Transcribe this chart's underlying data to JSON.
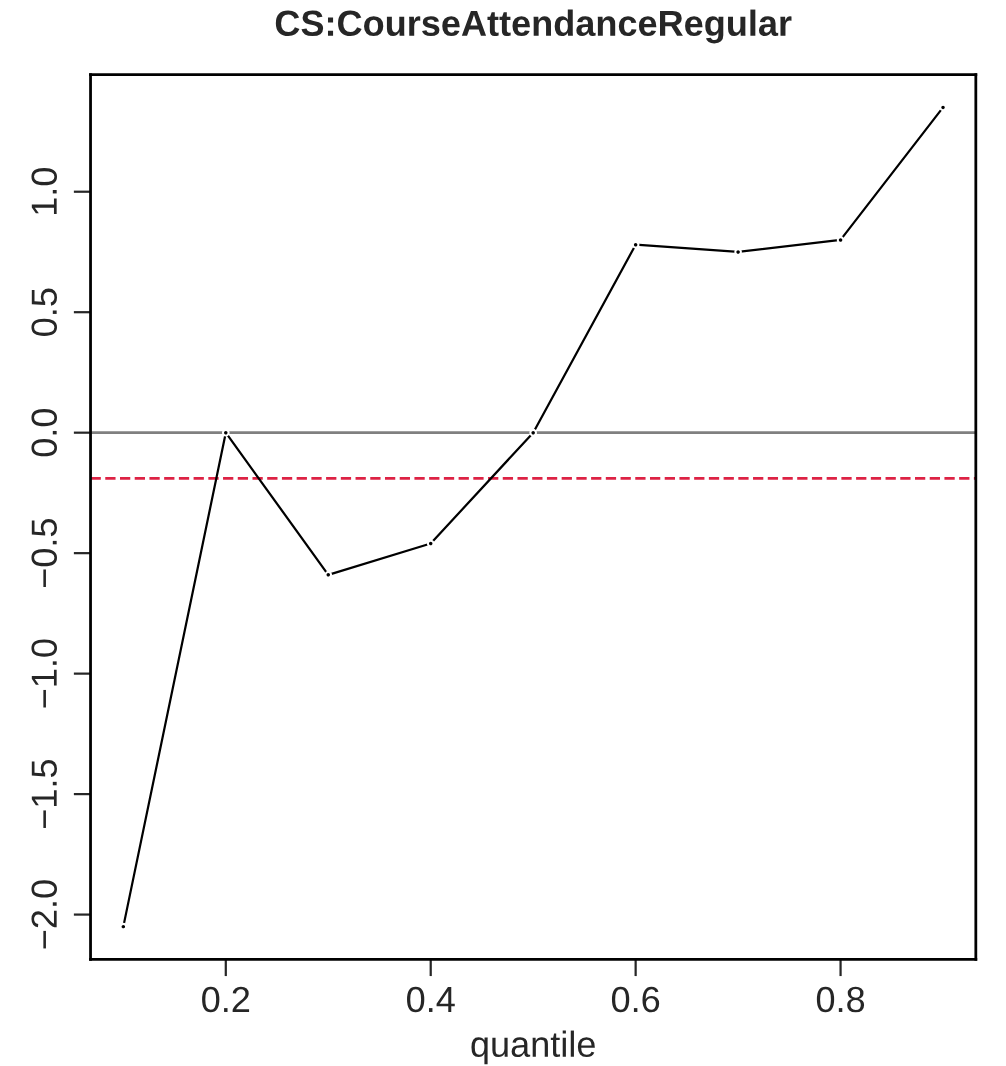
{
  "chart_data": {
    "type": "line",
    "title": "CS:CourseAttendanceRegular",
    "xlabel": "quantile",
    "x": [
      0.1,
      0.2,
      0.3,
      0.4,
      0.5,
      0.6,
      0.7,
      0.8,
      0.9
    ],
    "series": [
      {
        "color": "#000000",
        "values": [
          -2.05,
          0.0,
          -0.59,
          -0.46,
          0.0,
          0.78,
          0.75,
          0.8,
          1.35
        ]
      }
    ],
    "xlim": [
      0.068,
      0.932
    ],
    "xticks": [
      0.2,
      0.4,
      0.6,
      0.8
    ],
    "ylim": [
      -2.186,
      1.486
    ],
    "yticks": [
      {
        "value": -2.0,
        "label": "−2.0"
      },
      {
        "value": -1.5,
        "label": "−1.5"
      },
      {
        "value": -1.0,
        "label": "−1.0"
      },
      {
        "value": -0.5,
        "label": "−0.5"
      },
      {
        "value": 0.0,
        "label": "0.0"
      },
      {
        "value": 0.5,
        "label": "0.5"
      },
      {
        "value": 1.0,
        "label": "1.0"
      }
    ],
    "ref_lines": [
      {
        "axis": "y",
        "value": 0.0,
        "color": "#808080",
        "line_style": "solid"
      },
      {
        "axis": "y",
        "value": -0.19,
        "color": "#dd2244",
        "line_style": "dashed"
      }
    ],
    "marker": "circle",
    "line_style": "solid",
    "grid": false
  }
}
